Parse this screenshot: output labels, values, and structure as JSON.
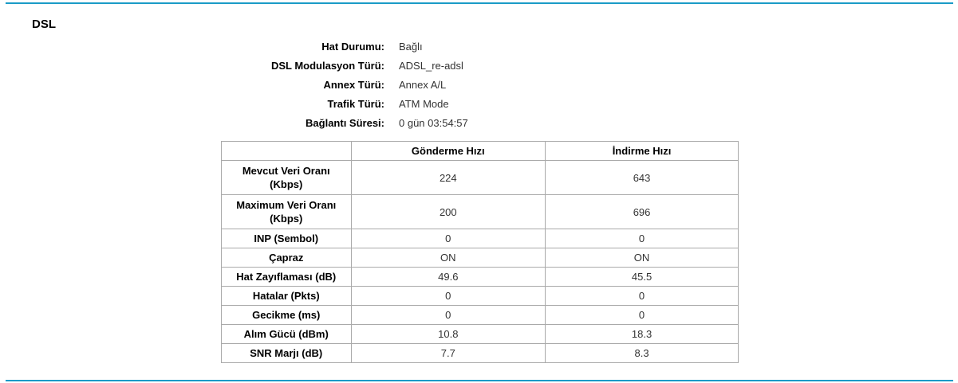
{
  "accent_color": "#1a9bc7",
  "title": "DSL",
  "info": [
    {
      "label": "Hat Durumu:",
      "value": "Bağlı"
    },
    {
      "label": "DSL Modulasyon Türü:",
      "value": "ADSL_re-adsl"
    },
    {
      "label": "Annex Türü:",
      "value": "Annex A/L"
    },
    {
      "label": "Trafik Türü:",
      "value": "ATM Mode"
    },
    {
      "label": "Bağlantı Süresi:",
      "value": "0 gün 03:54:57"
    }
  ],
  "table": {
    "headers": [
      "",
      "Gönderme Hızı",
      "İndirme Hızı"
    ],
    "rows": [
      {
        "label": "Mevcut Veri Oranı (Kbps)",
        "up": "224",
        "down": "643"
      },
      {
        "label": "Maximum Veri Oranı (Kbps)",
        "up": "200",
        "down": "696"
      },
      {
        "label": "INP (Sembol)",
        "up": "0",
        "down": "0"
      },
      {
        "label": "Çapraz",
        "up": "ON",
        "down": "ON"
      },
      {
        "label": "Hat Zayıflaması (dB)",
        "up": "49.6",
        "down": "45.5"
      },
      {
        "label": "Hatalar (Pkts)",
        "up": "0",
        "down": "0"
      },
      {
        "label": "Gecikme (ms)",
        "up": "0",
        "down": "0"
      },
      {
        "label": "Alım Gücü (dBm)",
        "up": "10.8",
        "down": "18.3"
      },
      {
        "label": "SNR Marjı (dB)",
        "up": "7.7",
        "down": "8.3"
      }
    ]
  }
}
